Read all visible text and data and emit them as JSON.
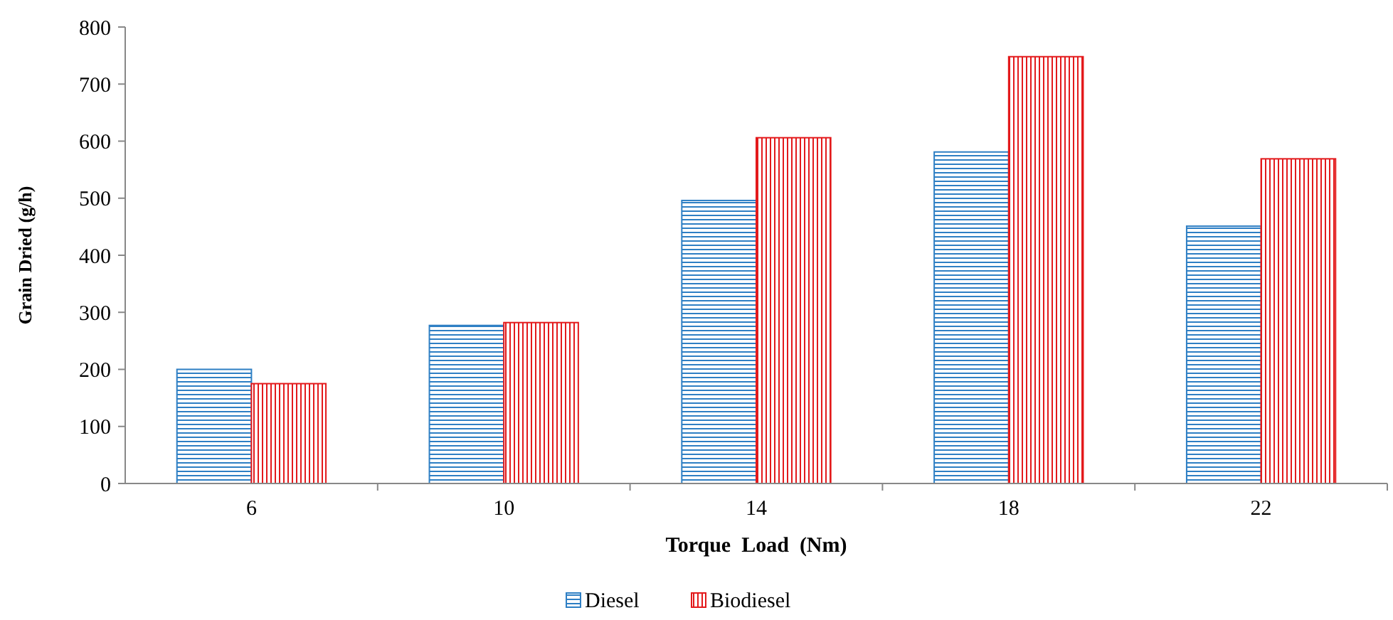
{
  "chart_data": {
    "type": "bar",
    "xlabel": "Torque  Load  (Nm)",
    "ylabel": "Grain Dried (g/h)",
    "categories": [
      "6",
      "10",
      "14",
      "18",
      "22"
    ],
    "series": [
      {
        "name": "Diesel",
        "color": "#2e7fc4",
        "values": [
          200,
          277,
          496,
          581,
          451
        ]
      },
      {
        "name": "Biodiesel",
        "color": "#e31a1c",
        "values": [
          175,
          282,
          606,
          748,
          569
        ]
      }
    ],
    "ylim": [
      0,
      800
    ],
    "yticks": [
      0,
      100,
      200,
      300,
      400,
      500,
      600,
      700,
      800
    ],
    "grid": false,
    "legend": "bottom"
  }
}
